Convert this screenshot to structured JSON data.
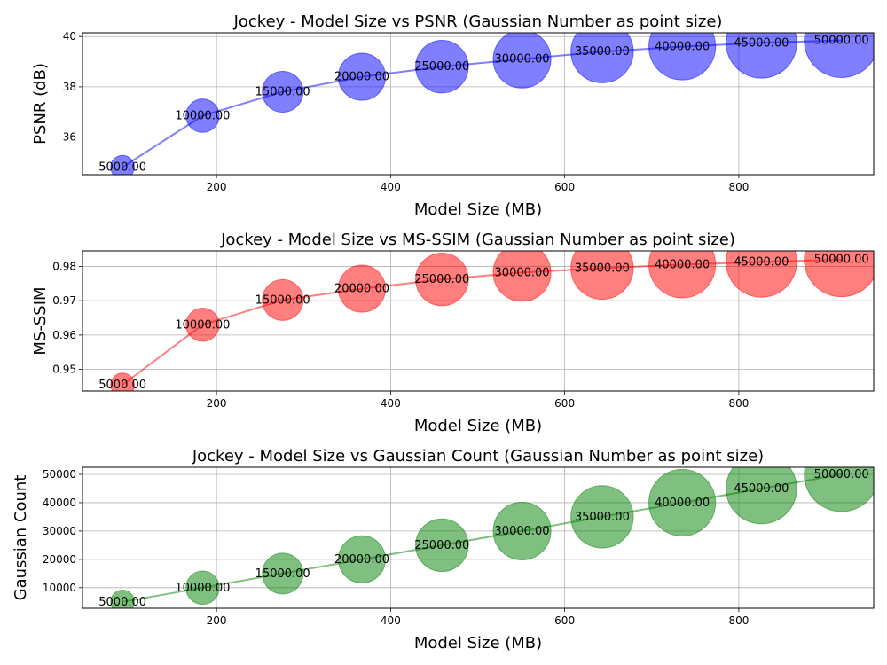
{
  "chart_data": [
    {
      "type": "scatter",
      "title": "Jockey - Model Size vs PSNR (Gaussian Number as point size)",
      "xlabel": "Model Size (MB)",
      "ylabel": "PSNR (dB)",
      "color": "#0000ff",
      "xlim": [
        46,
        955
      ],
      "ylim": [
        34.5,
        40.15
      ],
      "xticks": [
        200,
        400,
        600,
        800
      ],
      "xtick_labels": [
        "200",
        "400",
        "600",
        "800"
      ],
      "yticks": [
        36,
        38,
        40
      ],
      "ytick_labels": [
        "36",
        "38",
        "40"
      ],
      "grid": true,
      "x": [
        92,
        184,
        276,
        367,
        459,
        551,
        643,
        735,
        826,
        918
      ],
      "y": [
        34.8,
        36.85,
        37.8,
        38.4,
        38.8,
        39.1,
        39.4,
        39.6,
        39.75,
        39.85
      ],
      "size": [
        5000,
        10000,
        15000,
        20000,
        25000,
        30000,
        35000,
        40000,
        45000,
        50000
      ],
      "point_labels": [
        "5000.00",
        "10000.00",
        "15000.00",
        "20000.00",
        "25000.00",
        "30000.00",
        "35000.00",
        "40000.00",
        "45000.00",
        "50000.00"
      ]
    },
    {
      "type": "scatter",
      "title": "Jockey - Model Size vs MS-SSIM (Gaussian Number as point size)",
      "xlabel": "Model Size (MB)",
      "ylabel": "MS-SSIM",
      "color": "#ff0000",
      "xlim": [
        46,
        955
      ],
      "ylim": [
        0.9437,
        0.9845
      ],
      "xticks": [
        200,
        400,
        600,
        800
      ],
      "xtick_labels": [
        "200",
        "400",
        "600",
        "800"
      ],
      "yticks": [
        0.95,
        0.96,
        0.97,
        0.98
      ],
      "ytick_labels": [
        "0.95",
        "0.96",
        "0.97",
        "0.98"
      ],
      "grid": true,
      "x": [
        92,
        184,
        276,
        367,
        459,
        551,
        643,
        735,
        826,
        918
      ],
      "y": [
        0.9455,
        0.963,
        0.9702,
        0.9735,
        0.9762,
        0.9782,
        0.9795,
        0.9805,
        0.9813,
        0.982
      ],
      "size": [
        5000,
        10000,
        15000,
        20000,
        25000,
        30000,
        35000,
        40000,
        45000,
        50000
      ],
      "point_labels": [
        "5000.00",
        "10000.00",
        "15000.00",
        "20000.00",
        "25000.00",
        "30000.00",
        "35000.00",
        "40000.00",
        "45000.00",
        "50000.00"
      ]
    },
    {
      "type": "scatter",
      "title": "Jockey - Model Size vs Gaussian Count (Gaussian Number as point size)",
      "xlabel": "Model Size (MB)",
      "ylabel": "Gaussian Count",
      "color": "#008000",
      "xlim": [
        46,
        955
      ],
      "ylim": [
        2750,
        52500
      ],
      "xticks": [
        200,
        400,
        600,
        800
      ],
      "xtick_labels": [
        "200",
        "400",
        "600",
        "800"
      ],
      "yticks": [
        10000,
        20000,
        30000,
        40000,
        50000
      ],
      "ytick_labels": [
        "10000",
        "20000",
        "30000",
        "40000",
        "50000"
      ],
      "grid": true,
      "x": [
        92,
        184,
        276,
        367,
        459,
        551,
        643,
        735,
        826,
        918
      ],
      "y": [
        5000,
        10000,
        15000,
        20000,
        25000,
        30000,
        35000,
        40000,
        45000,
        50000
      ],
      "size": [
        5000,
        10000,
        15000,
        20000,
        25000,
        30000,
        35000,
        40000,
        45000,
        50000
      ],
      "point_labels": [
        "5000.00",
        "10000.00",
        "15000.00",
        "20000.00",
        "25000.00",
        "30000.00",
        "35000.00",
        "40000.00",
        "45000.00",
        "50000.00"
      ]
    }
  ]
}
